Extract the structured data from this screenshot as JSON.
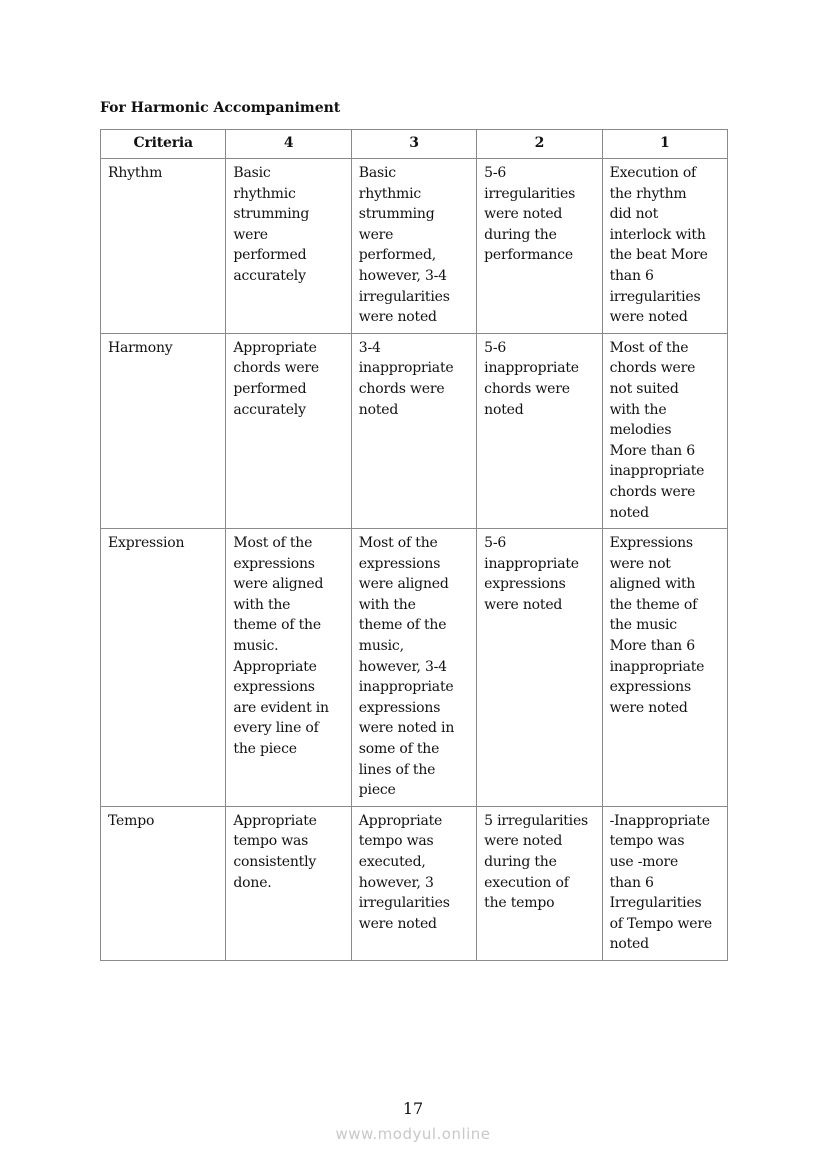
{
  "heading": "For Harmonic Accompaniment",
  "table": {
    "headers": [
      "Criteria",
      "4",
      "3",
      "2",
      "1"
    ],
    "rows": [
      [
        "Rhythm",
        "Basic\nrhythmic\nstrumming\nwere\nperformed\naccurately",
        "Basic\nrhythmic\nstrumming\nwere\nperformed,\nhowever, 3-4\nirregularities\nwere noted",
        "5-6\nirregularities\nwere noted\nduring the\nperformance",
        "Execution of\nthe rhythm\ndid not\ninterlock with\nthe beat  More\nthan 6\nirregularities\nwere noted"
      ],
      [
        "Harmony",
        "Appropriate\nchords were\nperformed\naccurately",
        "3-4\ninappropriate\nchords were\nnoted",
        "5-6\ninappropriate\nchords were\nnoted",
        "Most of the\nchords were\nnot suited\nwith the\nmelodies\nMore than 6\ninappropriate\nchords were\nnoted"
      ],
      [
        "Expression",
        "Most of the\nexpressions\nwere aligned\nwith the\ntheme of the\nmusic.\nAppropriate\nexpressions\nare evident in\nevery line of\nthe piece",
        "Most of the\nexpressions\nwere aligned\nwith the\ntheme of the\nmusic,\nhowever, 3-4\ninappropriate\nexpressions\nwere noted in\nsome of the\nlines of the\npiece",
        "5-6\ninappropriate\nexpressions\nwere noted",
        "Expressions\nwere not\naligned with\nthe theme of\nthe music\nMore than 6\ninappropriate\nexpressions\nwere noted"
      ],
      [
        "Tempo",
        "Appropriate\ntempo was\nconsistently\ndone.",
        "Appropriate\ntempo was\nexecuted,\nhowever, 3\nirregularities\nwere noted",
        "5 irregularities\nwere noted\nduring the\nexecution of\nthe tempo",
        "-Inappropriate\ntempo was\nuse  -more\nthan 6\nIrregularities\nof Tempo were\nnoted"
      ]
    ]
  },
  "page_number": "17",
  "watermark": "www.modyul.online"
}
